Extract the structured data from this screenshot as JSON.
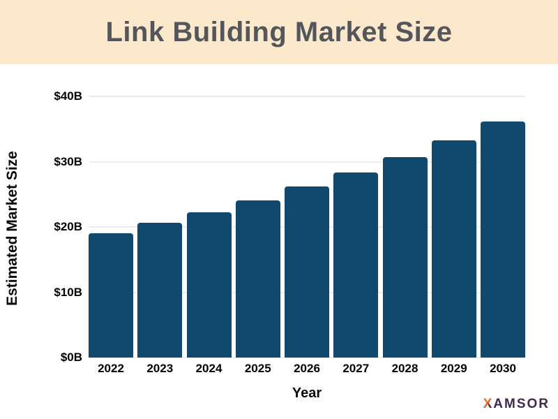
{
  "header": {
    "title": "Link Building Market Size",
    "background_color": "#FCE9CB",
    "title_color": "#54565B"
  },
  "chart_data": {
    "type": "bar",
    "title": "Link Building Market Size",
    "categories": [
      "2022",
      "2023",
      "2024",
      "2025",
      "2026",
      "2027",
      "2028",
      "2029",
      "2030"
    ],
    "values": [
      19,
      20.6,
      22.3,
      24.1,
      26.2,
      28.3,
      30.7,
      33.3,
      36.2
    ],
    "xlabel": "Year",
    "ylabel": "Estimated Market Size",
    "ylim": [
      0,
      40
    ],
    "ytick_labels": [
      "$0B",
      "$10B",
      "$20B",
      "$30B",
      "$40B"
    ],
    "ytick_values": [
      0,
      10,
      20,
      30,
      40
    ],
    "grid": "horizontal",
    "legend": "none",
    "bar_color": "#0F4A6E",
    "gridline_color": "#EBEBEB",
    "plot_background": "#FFFFFF"
  },
  "branding": {
    "logo_x": "X",
    "logo_rest": "AMSOR",
    "logo_x_color_start": "#F26A21",
    "logo_rest_color": "#3F2A4E"
  }
}
